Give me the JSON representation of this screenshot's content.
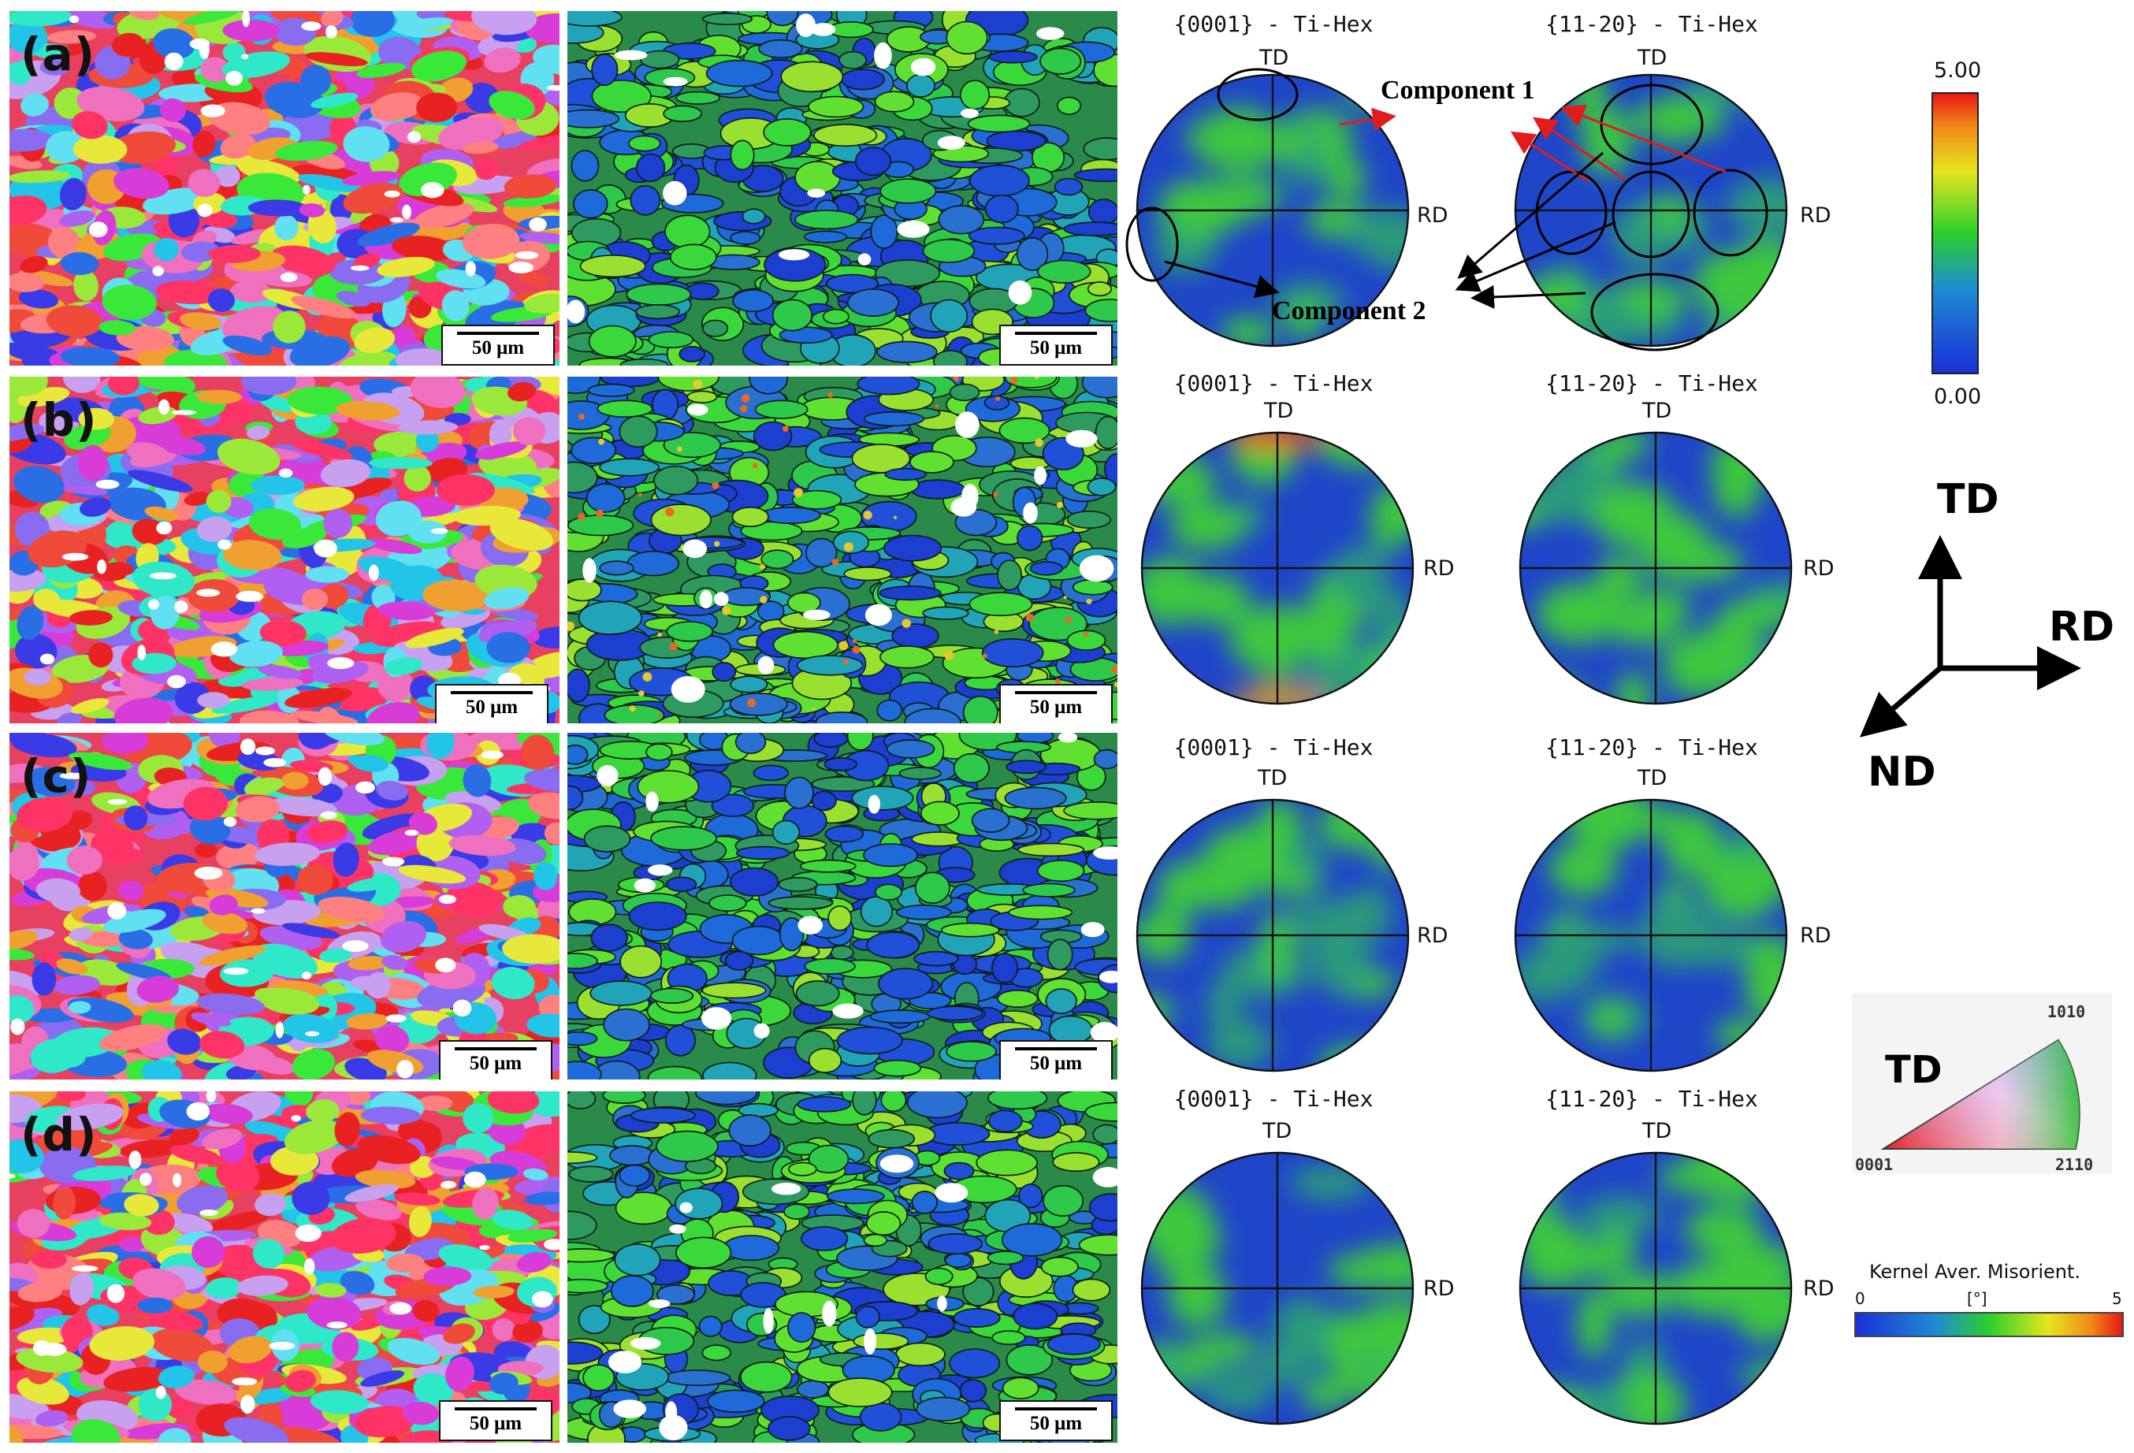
{
  "rows": [
    {
      "label": "(a)",
      "scale": "50 μm",
      "pf1_title": "{0001} - Ti-Hex",
      "pf2_title": "{11-20} - Ti-Hex",
      "top": "TD",
      "right": "RD",
      "seed": 1
    },
    {
      "label": "(b)",
      "scale": "50 μm",
      "pf1_title": "{0001} - Ti-Hex",
      "pf2_title": "{11-20} - Ti-Hex",
      "top": "TD",
      "right": "RD",
      "seed": 2
    },
    {
      "label": "(c)",
      "scale": "50 μm",
      "pf1_title": "{0001} - Ti-Hex",
      "pf2_title": "{11-20} - Ti-Hex",
      "top": "TD",
      "right": "RD",
      "seed": 3
    },
    {
      "label": "(d)",
      "scale": "50 μm",
      "pf1_title": "{0001} - Ti-Hex",
      "pf2_title": "{11-20} - Ti-Hex",
      "top": "TD",
      "right": "RD",
      "seed": 4
    }
  ],
  "annotations": {
    "component1": "Component 1",
    "component2": "Component 2"
  },
  "colorbar": {
    "max": "5.00",
    "min": "0.00"
  },
  "axes": {
    "td": "TD",
    "rd": "RD",
    "nd": "ND"
  },
  "ipf_key": {
    "direction": "TD",
    "corner_left": "0001",
    "corner_right": "2110",
    "corner_top": "1010"
  },
  "kam_legend": {
    "title": "Kernel Aver. Misorient.",
    "min": "0",
    "unit": "[°]",
    "max": "5"
  },
  "colors": {
    "kam_low": "#1c3fd0",
    "kam_mid": "#2ed12e",
    "kam_high": "#e81f1f",
    "pf_low": "#1f45c9",
    "pf_mid": "#3ec83e"
  }
}
